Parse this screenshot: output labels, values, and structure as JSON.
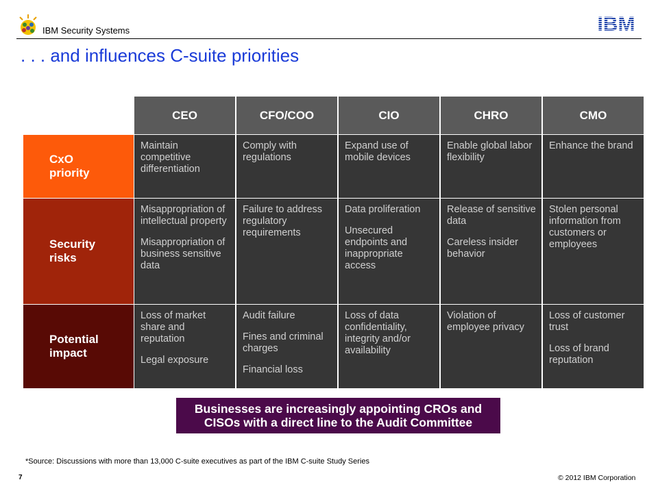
{
  "header": {
    "brand": "IBM Security Systems",
    "logo_text": "IBM",
    "title": ". . . and influences C-suite priorities"
  },
  "table": {
    "columns": [
      "CEO",
      "CFO/COO",
      "CIO",
      "CHRO",
      "CMO"
    ],
    "rows": [
      {
        "label": "CxO priority",
        "color": "#fd5a0a",
        "cells": [
          [
            "Maintain competitive differentiation"
          ],
          [
            "Comply with regulations"
          ],
          [
            "Expand use of mobile devices"
          ],
          [
            "Enable global labor flexibility"
          ],
          [
            "Enhance the brand"
          ]
        ]
      },
      {
        "label": "Security risks",
        "color": "#a0240a",
        "cells": [
          [
            "Misappropriation of intellectual property",
            "Misappropriation of business sensitive data"
          ],
          [
            "Failure to address regulatory requirements"
          ],
          [
            "Data proliferation",
            "Unsecured endpoints and inappropriate access"
          ],
          [
            "Release of sensitive data",
            "Careless insider behavior"
          ],
          [
            "Stolen personal information from customers or employees"
          ]
        ]
      },
      {
        "label": "Potential impact",
        "color": "#580a05",
        "cells": [
          [
            "Loss of market share and reputation",
            "Legal exposure"
          ],
          [
            "Audit failure",
            "Fines and criminal charges",
            "Financial loss"
          ],
          [
            "Loss of data confidentiality, integrity and/or availability"
          ],
          [
            "Violation of employee privacy"
          ],
          [
            "Loss of customer trust",
            "Loss of brand reputation"
          ]
        ]
      }
    ]
  },
  "callout": {
    "line1": "Businesses are increasingly appointing CROs and",
    "line2": "CISOs with a direct line to the Audit Committee"
  },
  "footer": {
    "footnote": "*Source: Discussions with more than 13,000 C-suite executives as part of the IBM C-suite Study Series",
    "page_number": "7",
    "copyright": "© 2012 IBM Corporation"
  },
  "colors": {
    "title": "#1a3bd8",
    "header_cell": "#5a5a5a",
    "body_cell": "#363636",
    "callout": "#4b0a4a"
  }
}
